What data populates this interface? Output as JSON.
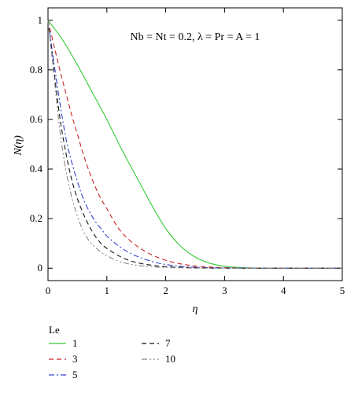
{
  "chart_data": {
    "type": "line",
    "title": "",
    "xlabel": "η",
    "ylabel": "N(η)",
    "annotation": "Nb = Nt = 0.2, λ = Pr = A = 1",
    "xlim": [
      0,
      5
    ],
    "ylim": [
      -0.05,
      1.05
    ],
    "xticks": [
      "0",
      "1",
      "2",
      "3",
      "4",
      "5"
    ],
    "yticks": [
      "0",
      "0.2",
      "0.4",
      "0.6",
      "0.8",
      "1"
    ],
    "grid": false,
    "legend": {
      "title": "Le",
      "placement": "below"
    },
    "series": [
      {
        "name": "1",
        "color": "#33cc33",
        "dash": "solid",
        "x": [
          0,
          0.25,
          0.5,
          0.75,
          1,
          1.25,
          1.5,
          1.75,
          2,
          2.25,
          2.5,
          2.75,
          3,
          3.25,
          3.5,
          4,
          4.5,
          5
        ],
        "y": [
          1,
          0.92,
          0.82,
          0.71,
          0.6,
          0.48,
          0.37,
          0.26,
          0.16,
          0.09,
          0.045,
          0.02,
          0.008,
          0.003,
          0.001,
          0,
          0,
          0
        ]
      },
      {
        "name": "3",
        "color": "#cc2222",
        "dash": "dash",
        "x": [
          0,
          0.1,
          0.2,
          0.3,
          0.4,
          0.5,
          0.6,
          0.7,
          0.8,
          0.9,
          1,
          1.2,
          1.4,
          1.6,
          1.8,
          2,
          2.2,
          2.4,
          2.6,
          2.8,
          3,
          3.5,
          4,
          5
        ],
        "y": [
          1,
          0.9,
          0.8,
          0.71,
          0.62,
          0.54,
          0.46,
          0.39,
          0.33,
          0.28,
          0.24,
          0.16,
          0.11,
          0.075,
          0.05,
          0.032,
          0.02,
          0.012,
          0.007,
          0.004,
          0.002,
          0,
          0,
          0
        ]
      },
      {
        "name": "5",
        "color": "#3344cc",
        "dash": "dashdot",
        "x": [
          0,
          0.1,
          0.2,
          0.3,
          0.4,
          0.5,
          0.6,
          0.7,
          0.8,
          0.9,
          1,
          1.2,
          1.4,
          1.6,
          1.8,
          2,
          2.3,
          2.6,
          3,
          4,
          5
        ],
        "y": [
          1,
          0.83,
          0.67,
          0.53,
          0.43,
          0.35,
          0.28,
          0.23,
          0.19,
          0.16,
          0.13,
          0.09,
          0.06,
          0.04,
          0.025,
          0.015,
          0.007,
          0.003,
          0.001,
          0,
          0
        ]
      },
      {
        "name": "7",
        "color": "#111111",
        "dash": "dash",
        "x": [
          0,
          0.1,
          0.2,
          0.3,
          0.4,
          0.5,
          0.6,
          0.7,
          0.8,
          0.9,
          1,
          1.2,
          1.4,
          1.6,
          1.8,
          2,
          2.3,
          2.6,
          3,
          4,
          5
        ],
        "y": [
          1,
          0.8,
          0.61,
          0.47,
          0.36,
          0.28,
          0.22,
          0.17,
          0.13,
          0.1,
          0.08,
          0.05,
          0.03,
          0.018,
          0.011,
          0.006,
          0.003,
          0.001,
          0,
          0,
          0
        ]
      },
      {
        "name": "10",
        "color": "#888888",
        "dash": "dashdotdot",
        "x": [
          0,
          0.1,
          0.2,
          0.3,
          0.4,
          0.5,
          0.6,
          0.7,
          0.8,
          0.9,
          1,
          1.2,
          1.4,
          1.6,
          1.8,
          2,
          2.3,
          2.6,
          3,
          4,
          5
        ],
        "y": [
          1,
          0.78,
          0.56,
          0.4,
          0.29,
          0.21,
          0.15,
          0.11,
          0.085,
          0.065,
          0.05,
          0.028,
          0.016,
          0.009,
          0.005,
          0.003,
          0.001,
          0,
          0,
          0,
          0
        ]
      }
    ]
  }
}
